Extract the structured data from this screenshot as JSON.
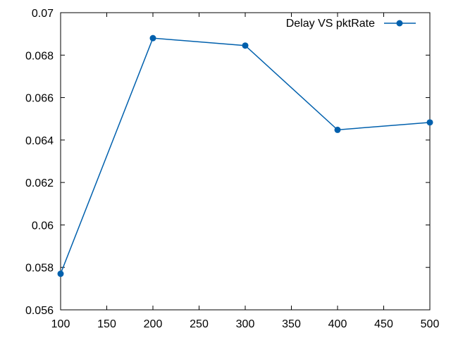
{
  "chart_data": {
    "type": "line",
    "title": "",
    "xlabel": "",
    "ylabel": "",
    "xlim": [
      100,
      500
    ],
    "ylim": [
      0.056,
      0.07
    ],
    "x_ticks": [
      100,
      150,
      200,
      250,
      300,
      350,
      400,
      450,
      500
    ],
    "x_tick_labels": [
      "100",
      "150",
      "200",
      "250",
      "300",
      "350",
      "400",
      "450",
      "500"
    ],
    "y_ticks": [
      0.056,
      0.058,
      0.06,
      0.062,
      0.064,
      0.066,
      0.068,
      0.07
    ],
    "y_tick_labels": [
      "0.056",
      "0.058",
      "0.06",
      "0.062",
      "0.064",
      "0.066",
      "0.068",
      "0.07"
    ],
    "grid": false,
    "legend_position": "top-right",
    "series": [
      {
        "name": "Delay VS pktRate",
        "color": "#0060ad",
        "marker": "circle",
        "x": [
          100,
          200,
          300,
          400,
          500
        ],
        "y": [
          0.0577,
          0.0688,
          0.06845,
          0.06448,
          0.06483
        ]
      }
    ]
  }
}
